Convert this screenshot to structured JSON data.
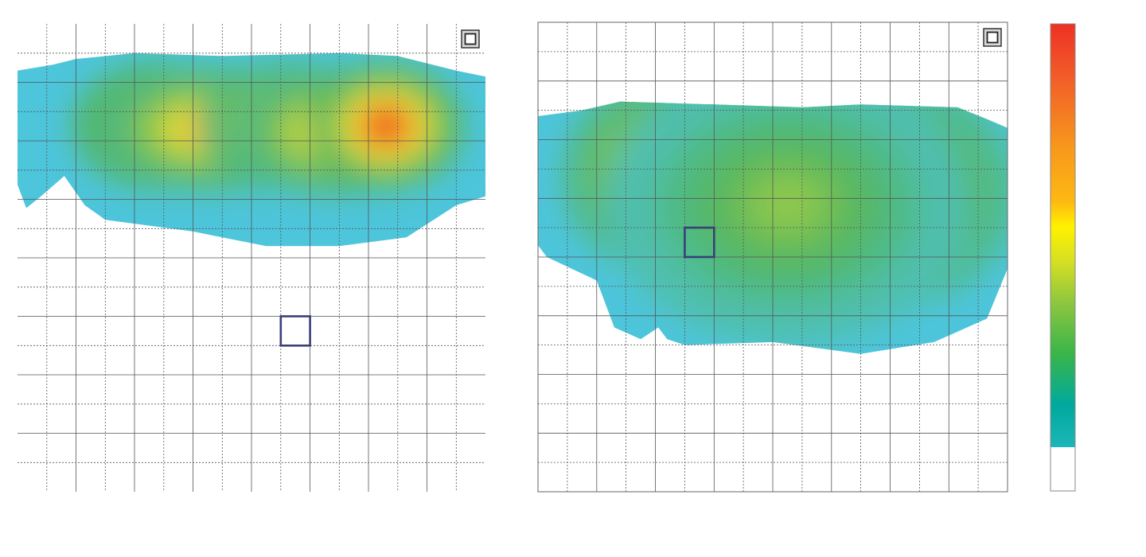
{
  "chart_data": [
    {
      "type": "heatmap",
      "grid": true,
      "grid_columns": 16,
      "grid_rows": 16,
      "corner_marker": "square-frame-icon",
      "selected_cell": {
        "col": 9,
        "row": 10
      },
      "hotspots": [
        {
          "col": 4.8,
          "row": 3.5,
          "level": 1.0,
          "sx": 1.2,
          "sy": 0.9
        },
        {
          "col": 6.5,
          "row": 3.6,
          "level": 0.74,
          "sx": 1.6,
          "sy": 0.9
        },
        {
          "col": 9.3,
          "row": 3.5,
          "level": 0.8,
          "sx": 1.3,
          "sy": 0.9
        },
        {
          "col": 10.8,
          "row": 3.7,
          "level": 0.74,
          "sx": 1.4,
          "sy": 0.9
        },
        {
          "col": 12.6,
          "row": 3.5,
          "level": 1.0,
          "sx": 1.1,
          "sy": 0.9
        }
      ],
      "footprint": [
        [
          0,
          1.6
        ],
        [
          1.2,
          1.4
        ],
        [
          2,
          1.2
        ],
        [
          4,
          1.0
        ],
        [
          7,
          1.1
        ],
        [
          11,
          1.0
        ],
        [
          13,
          1.1
        ],
        [
          15,
          1.6
        ],
        [
          16,
          1.8
        ],
        [
          16,
          5.9
        ],
        [
          15,
          6.2
        ],
        [
          13.3,
          7.3
        ],
        [
          11,
          7.6
        ],
        [
          8.5,
          7.6
        ],
        [
          6,
          7.1
        ],
        [
          3,
          6.7
        ],
        [
          2.3,
          6.2
        ],
        [
          1.6,
          5.2
        ],
        [
          0.8,
          5.9
        ],
        [
          0.3,
          6.3
        ],
        [
          0,
          5.5
        ]
      ]
    },
    {
      "type": "heatmap",
      "grid": true,
      "grid_columns": 16,
      "grid_rows": 16,
      "corner_marker": "square-frame-icon",
      "selected_cell": {
        "col": 5,
        "row": 7
      },
      "hotspots": [
        {
          "col": 4.2,
          "row": 5.2,
          "level": 0.7,
          "sx": 1.4,
          "sy": 1.4
        },
        {
          "col": 12.3,
          "row": 5.8,
          "level": 0.58,
          "sx": 1.7,
          "sy": 1.6
        },
        {
          "col": 8.5,
          "row": 6.2,
          "level": 0.36,
          "sx": 2.6,
          "sy": 2.0
        }
      ],
      "footprint": [
        [
          0,
          3.2
        ],
        [
          1.5,
          3.0
        ],
        [
          2.8,
          2.7
        ],
        [
          6,
          2.8
        ],
        [
          9,
          2.9
        ],
        [
          11,
          2.8
        ],
        [
          14.3,
          2.9
        ],
        [
          15.3,
          3.3
        ],
        [
          16,
          3.6
        ],
        [
          16,
          8.4
        ],
        [
          15.3,
          10.1
        ],
        [
          13.5,
          10.9
        ],
        [
          11,
          11.3
        ],
        [
          8,
          10.9
        ],
        [
          5,
          11.0
        ],
        [
          4.4,
          10.8
        ],
        [
          4.1,
          10.4
        ],
        [
          3.5,
          10.8
        ],
        [
          2.6,
          10.4
        ],
        [
          2,
          8.8
        ],
        [
          0.3,
          8.0
        ],
        [
          0,
          7.6
        ]
      ]
    }
  ],
  "colorbar": {
    "type": "gradient",
    "stops": [
      "#ee3124",
      "#f15a29",
      "#f7941d",
      "#fdb913",
      "#fff200",
      "#d7df23",
      "#8dc63f",
      "#39b54a",
      "#00a99d",
      "#1cb6b8"
    ],
    "empty_color": "#ffffff"
  }
}
